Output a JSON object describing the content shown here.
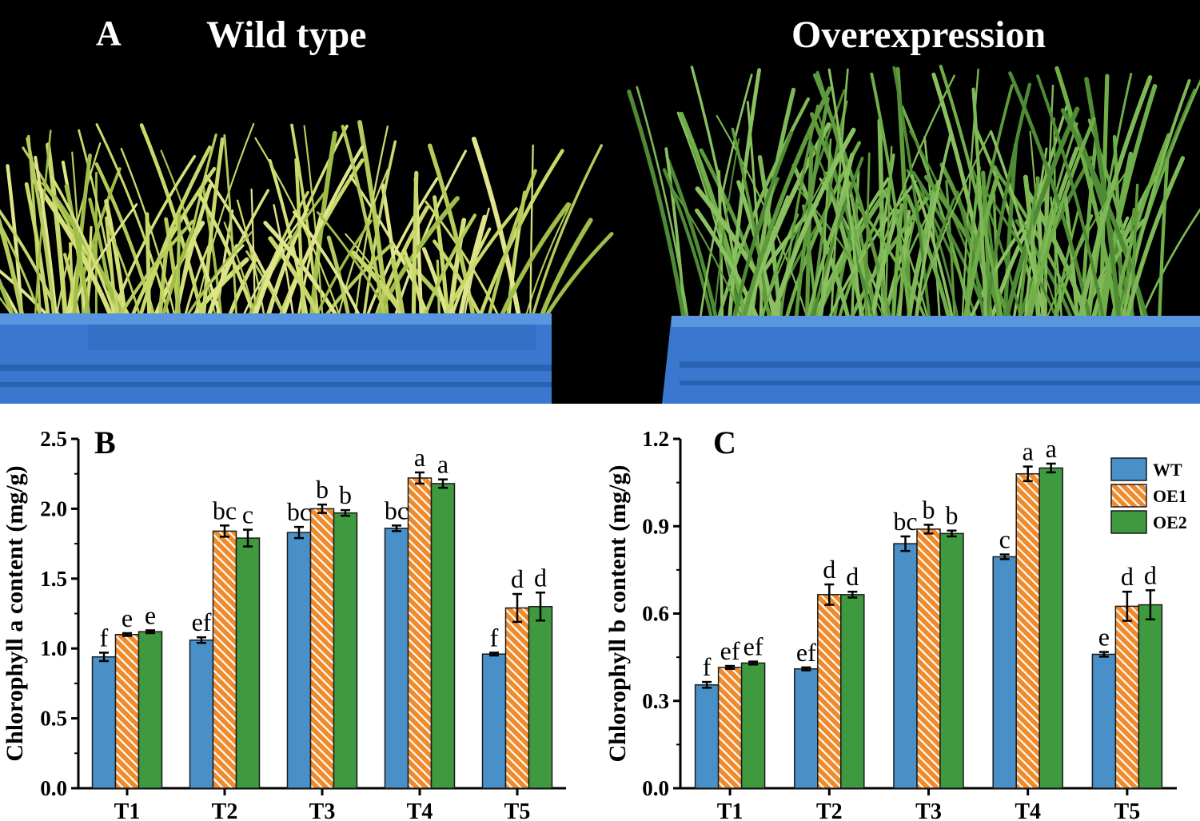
{
  "photo": {
    "panel_label": "A",
    "left_label": "Wild type",
    "right_label": "Overexpression"
  },
  "colors": {
    "wt": "#4a90c8",
    "oe1_fill": "#f08a2a",
    "oe1_hatch": "#ffffff",
    "oe2": "#3f9a3f",
    "axis": "#000000"
  },
  "legend": {
    "labels": [
      "WT",
      "OE1",
      "OE2"
    ]
  },
  "chart_data": [
    {
      "panel_label": "B",
      "type": "bar",
      "ylabel": "Chlorophyll a content (mg/g)",
      "ylim": [
        0,
        2.5
      ],
      "yticks": [
        "0.0",
        "0.5",
        "1.0",
        "1.5",
        "2.0",
        "2.5"
      ],
      "categories": [
        "T1",
        "T2",
        "T3",
        "T4",
        "T5"
      ],
      "series": [
        {
          "name": "WT",
          "values": [
            0.94,
            1.06,
            1.83,
            1.86,
            0.96
          ],
          "errors": [
            0.03,
            0.02,
            0.04,
            0.02,
            0.01
          ],
          "letters": [
            "f",
            "ef",
            "bc",
            "bc",
            "f"
          ]
        },
        {
          "name": "OE1",
          "values": [
            1.1,
            1.84,
            2.0,
            2.22,
            1.29
          ],
          "errors": [
            0.01,
            0.04,
            0.03,
            0.04,
            0.1
          ],
          "letters": [
            "e",
            "bc",
            "b",
            "a",
            "d"
          ]
        },
        {
          "name": "OE2",
          "values": [
            1.12,
            1.79,
            1.97,
            2.18,
            1.3
          ],
          "errors": [
            0.01,
            0.06,
            0.02,
            0.03,
            0.1
          ],
          "letters": [
            "e",
            "c",
            "b",
            "a",
            "d"
          ]
        }
      ]
    },
    {
      "panel_label": "C",
      "type": "bar",
      "ylabel": "Chlorophyll b content (mg/g)",
      "ylim": [
        0,
        1.2
      ],
      "yticks": [
        "0.0",
        "0.3",
        "0.6",
        "0.9",
        "1.2"
      ],
      "categories": [
        "T1",
        "T2",
        "T3",
        "T4",
        "T5"
      ],
      "series": [
        {
          "name": "WT",
          "values": [
            0.355,
            0.41,
            0.84,
            0.795,
            0.46
          ],
          "errors": [
            0.01,
            0.005,
            0.025,
            0.008,
            0.008
          ],
          "letters": [
            "f",
            "ef",
            "bc",
            "c",
            "e"
          ]
        },
        {
          "name": "OE1",
          "values": [
            0.415,
            0.665,
            0.89,
            1.08,
            0.625
          ],
          "errors": [
            0.005,
            0.035,
            0.015,
            0.025,
            0.05
          ],
          "letters": [
            "ef",
            "d",
            "b",
            "a",
            "d"
          ]
        },
        {
          "name": "OE2",
          "values": [
            0.43,
            0.665,
            0.875,
            1.1,
            0.63
          ],
          "errors": [
            0.005,
            0.01,
            0.01,
            0.015,
            0.05
          ],
          "letters": [
            "ef",
            "d",
            "b",
            "a",
            "d"
          ]
        }
      ]
    }
  ]
}
